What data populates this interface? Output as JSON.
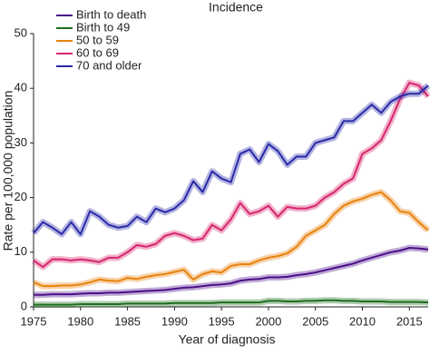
{
  "chart_data": {
    "type": "line",
    "title": "Incidence",
    "x_label": "Year of diagnosis",
    "y_label": "Rate per 100,000 population",
    "x": [
      1975,
      1976,
      1977,
      1978,
      1979,
      1980,
      1981,
      1982,
      1983,
      1984,
      1985,
      1986,
      1987,
      1988,
      1989,
      1990,
      1991,
      1992,
      1993,
      1994,
      1995,
      1996,
      1997,
      1998,
      1999,
      2000,
      2001,
      2002,
      2003,
      2004,
      2005,
      2006,
      2007,
      2008,
      2009,
      2010,
      2011,
      2012,
      2013,
      2014,
      2015,
      2016,
      2017
    ],
    "series": [
      {
        "name": "Birth to death",
        "color": "#4b0f8a",
        "values": [
          2.2,
          2.2,
          2.3,
          2.3,
          2.3,
          2.4,
          2.5,
          2.5,
          2.6,
          2.6,
          2.7,
          2.8,
          2.9,
          3,
          3.1,
          3.3,
          3.5,
          3.6,
          3.8,
          4,
          4.1,
          4.3,
          4.8,
          5,
          5.1,
          5.4,
          5.4,
          5.5,
          5.8,
          6,
          6.3,
          6.7,
          7.1,
          7.5,
          7.9,
          8.5,
          9,
          9.5,
          10,
          10.3,
          10.8,
          10.7,
          10.5
        ]
      },
      {
        "name": "Birth to 49",
        "color": "#1e6e1e",
        "values": [
          0.4,
          0.4,
          0.4,
          0.4,
          0.4,
          0.5,
          0.5,
          0.5,
          0.5,
          0.5,
          0.6,
          0.6,
          0.6,
          0.6,
          0.6,
          0.7,
          0.7,
          0.7,
          0.7,
          0.7,
          0.8,
          0.8,
          0.8,
          0.8,
          0.8,
          1.1,
          1.1,
          1.0,
          1.0,
          1.1,
          1.1,
          1.2,
          1.2,
          1.1,
          1.1,
          1.0,
          1.0,
          1.0,
          0.9,
          0.9,
          0.9,
          0.9,
          0.8
        ]
      },
      {
        "name": "50 to 59",
        "color": "#e8820f",
        "values": [
          4.5,
          3.8,
          3.8,
          3.9,
          3.9,
          4.1,
          4.5,
          5,
          4.8,
          4.7,
          5.3,
          5.1,
          5.5,
          5.8,
          6,
          6.4,
          6.8,
          5,
          6,
          6.5,
          6.3,
          7.5,
          7.8,
          7.8,
          8.5,
          9,
          9.3,
          9.8,
          11,
          13,
          14,
          15,
          17,
          18.5,
          19.3,
          19.8,
          20.5,
          21,
          19.5,
          17.5,
          17.2,
          15.5,
          14
        ]
      },
      {
        "name": "60 to 69",
        "color": "#d6266e",
        "values": [
          8.5,
          7.3,
          8.7,
          8.7,
          8.5,
          8.7,
          8.5,
          8.2,
          9,
          9,
          10,
          11.3,
          11,
          11.5,
          13,
          13.5,
          13,
          12.2,
          12.5,
          15,
          14,
          16,
          19,
          17,
          17.5,
          18.5,
          16.5,
          18.3,
          18,
          18,
          18.5,
          20,
          21,
          22.5,
          23.5,
          28,
          29,
          30.5,
          34,
          38,
          41,
          40.5,
          38.5
        ]
      },
      {
        "name": "70 and older",
        "color": "#2a2aa8",
        "values": [
          13.5,
          15.5,
          14.5,
          13.3,
          15.5,
          13.3,
          17.5,
          16.5,
          15,
          14.5,
          14.8,
          16.5,
          15.5,
          18,
          17.3,
          18,
          19.5,
          23,
          21,
          24.8,
          23.5,
          22.8,
          28,
          28.8,
          26.5,
          29.8,
          28.5,
          26,
          27.5,
          27.5,
          30,
          30.5,
          31,
          34,
          34,
          35.5,
          37,
          35.5,
          37.5,
          38.5,
          39,
          39,
          40.5
        ]
      }
    ],
    "xlim": [
      1975,
      2017
    ],
    "xticks": [
      1975,
      1980,
      1985,
      1990,
      1995,
      2000,
      2005,
      2010,
      2015
    ],
    "ylim": [
      0,
      50
    ],
    "yticks": [
      0,
      10,
      20,
      30,
      40,
      50
    ],
    "grid": false,
    "legend": "upper left"
  }
}
